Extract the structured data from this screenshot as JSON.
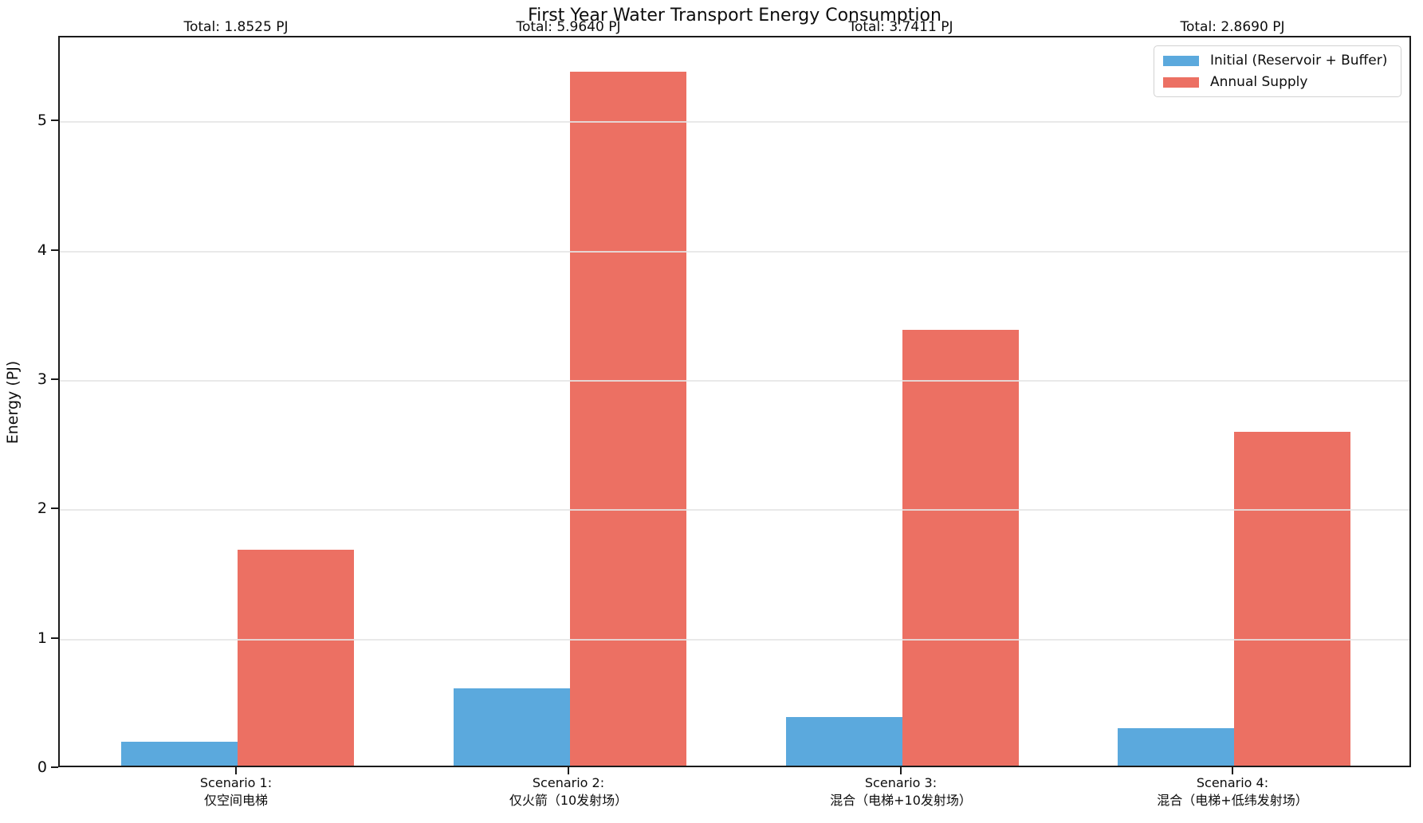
{
  "title": "First Year Water Transport Energy Consumption",
  "ylabel": "Energy (PJ)",
  "totals": [
    "Total: 1.8525 PJ",
    "Total: 5.9640 PJ",
    "Total: 3.7411 PJ",
    "Total: 2.8690 PJ"
  ],
  "legend": {
    "items": [
      {
        "label": "Initial (Reservoir + Buffer)",
        "color": "#5BA9DD"
      },
      {
        "label": "Annual Supply",
        "color": "#EC7063"
      }
    ]
  },
  "colors": {
    "initial_bar": "#5BA9DD",
    "annual_bar": "#EC7063",
    "grid": "#e5e5e5",
    "spine": "#1b1b1b"
  },
  "chart_data": {
    "type": "bar",
    "title": "First Year Water Transport Energy Consumption",
    "ylabel": "Energy (PJ)",
    "xlabel": "",
    "categories": [
      {
        "line1": "Scenario 1:",
        "line2": "仅空间电梯"
      },
      {
        "line1": "Scenario 2:",
        "line2": "仅火箭（10发射场）"
      },
      {
        "line1": "Scenario 3:",
        "line2": "混合（电梯+10发射场）"
      },
      {
        "line1": "Scenario 4:",
        "line2": "混合（电梯+低纬发射场）"
      }
    ],
    "series": [
      {
        "name": "Initial (Reservoir + Buffer)",
        "color": "#5BA9DD",
        "values": [
          0.1852,
          0.5964,
          0.3741,
          0.2869
        ]
      },
      {
        "name": "Annual Supply",
        "color": "#EC7063",
        "values": [
          1.6673,
          5.3676,
          3.367,
          2.5821
        ]
      }
    ],
    "group_totals_pj": [
      1.8525,
      5.964,
      3.7411,
      2.869
    ],
    "yticks": [
      0,
      1,
      2,
      3,
      4,
      5
    ],
    "ylim": [
      0,
      5.655
    ],
    "grid": "horizontal-on-top-of-bars",
    "legend_position": "upper right"
  }
}
